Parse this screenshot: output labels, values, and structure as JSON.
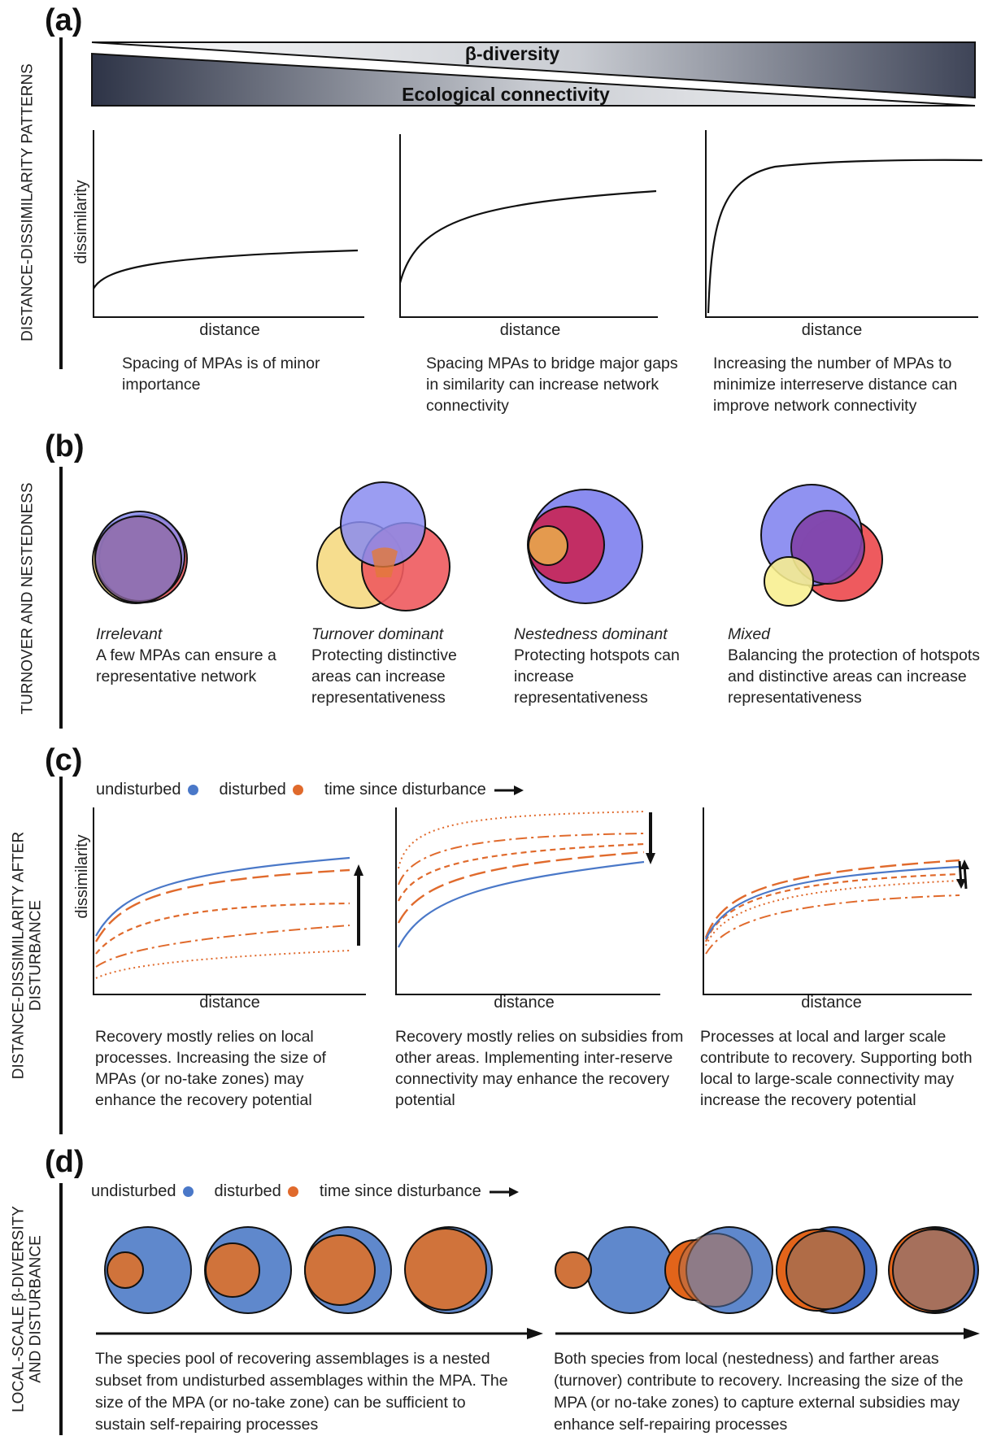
{
  "panels": {
    "a": {
      "label": "(a)",
      "side_title": "DISTANCE-DISSIMILARITY PATTERNS",
      "wedge_top": "β-diversity",
      "wedge_bottom": "Ecological connectivity",
      "ylabel": "dissimilarity",
      "xlabel": "distance",
      "captions": [
        "Spacing of MPAs is of minor importance",
        "Spacing MPAs to bridge major gaps in similarity can increase network connectivity",
        "Increasing the number of MPAs to minimize interreserve distance can improve network connectivity"
      ]
    },
    "b": {
      "label": "(b)",
      "side_title": "TURNOVER AND NESTEDNESS",
      "items": [
        {
          "title": "Irrelevant",
          "text": "A few MPAs can ensure a representative network"
        },
        {
          "title": "Turnover dominant",
          "text": "Protecting distinctive areas can increase representativeness"
        },
        {
          "title": "Nestedness dominant",
          "text": "Protecting hotspots can increase representativeness"
        },
        {
          "title": "Mixed",
          "text": "Balancing the protection of hotspots and distinctive areas can increase representativeness"
        }
      ]
    },
    "c": {
      "label": "(c)",
      "side_title_line1": "DISTANCE-DISSIMILARITY AFTER",
      "side_title_line2": "DISTURBANCE",
      "legend": {
        "undisturbed": "undisturbed",
        "disturbed": "disturbed",
        "time": "time since disturbance"
      },
      "ylabel": "dissimilarity",
      "xlabel": "distance",
      "captions": [
        "Recovery mostly relies on local processes. Increasing the size of MPAs (or no-take zones) may enhance the recovery potential",
        "Recovery mostly relies on subsidies from other areas. Implementing inter-reserve connectivity may enhance the recovery potential",
        "Processes at local and larger scale contribute to recovery. Supporting both local to large-scale connectivity may increase the recovery potential"
      ]
    },
    "d": {
      "label": "(d)",
      "side_title_line1": "LOCAL-SCALE β-DIVERSITY",
      "side_title_line2": "AND DISTURBANCE",
      "legend": {
        "undisturbed": "undisturbed",
        "disturbed": "disturbed",
        "time": "time since disturbance"
      },
      "captions": [
        "The species pool of recovering assemblages is a nested subset from undisturbed assemblages within the MPA. The size of the MPA (or no-take zone) can be sufficient to sustain self-repairing processes",
        "Both species from local (nestedness) and farther areas (turnover) contribute to recovery. Increasing the size of the MPA (or no-take zones) to capture external subsidies may enhance self-repairing processes"
      ]
    }
  },
  "colors": {
    "undisturbed": "#4a78c8",
    "disturbed": "#e06a2c",
    "venn_blue": "#8a8cf0",
    "venn_yellow": "#f6dd8e",
    "venn_red": "#ee5a5e",
    "d_blue": "#5f88cc",
    "d_orange": "#d0733b"
  }
}
